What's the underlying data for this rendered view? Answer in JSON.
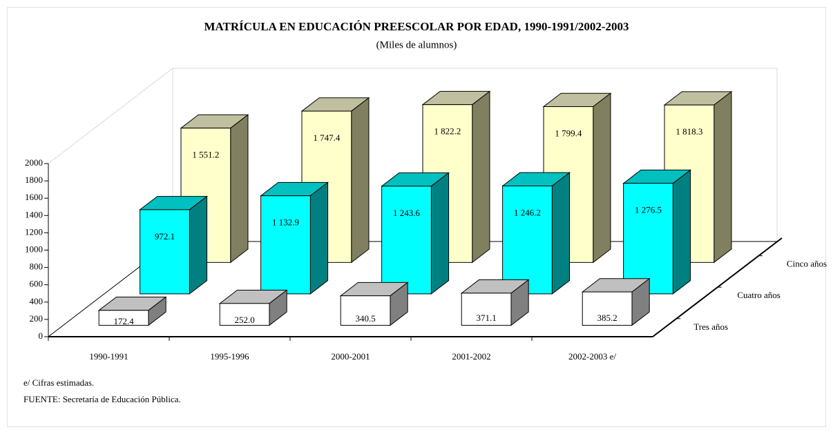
{
  "chart_data": {
    "type": "bar3d",
    "title": "MATRÍCULA EN EDUCACIÓN PREESCOLAR POR EDAD, 1990-1991/2002-2003",
    "subtitle": "(Miles de alumnos)",
    "categories": [
      "1990-1991",
      "1995-1996",
      "2000-2001",
      "2001-2002",
      "2002-2003 e/"
    ],
    "series": [
      {
        "name": "Tres años",
        "color": "#ffffff",
        "top_color": "#c0c0c0",
        "side_color": "#808080",
        "values": [
          172.4,
          252.0,
          340.5,
          371.1,
          385.2
        ],
        "value_labels": [
          "172.4",
          "252.0",
          "340.5",
          "371.1",
          "385.2"
        ]
      },
      {
        "name": "Cuatro años",
        "color": "#00ffff",
        "top_color": "#00c0c0",
        "side_color": "#008080",
        "values": [
          972.1,
          1132.9,
          1243.6,
          1246.2,
          1276.5
        ],
        "value_labels": [
          "972.1",
          "1 132.9",
          "1 243.6",
          "1 246.2",
          "1 276.5"
        ]
      },
      {
        "name": "Cinco años",
        "color": "#ffffcc",
        "top_color": "#c0c0a0",
        "side_color": "#808060",
        "values": [
          1551.2,
          1747.4,
          1822.2,
          1799.4,
          1818.3
        ],
        "value_labels": [
          "1 551.2",
          "1 747.4",
          "1 822.2",
          "1 799.4",
          "1 818.3"
        ]
      }
    ],
    "ylim": [
      0,
      2000
    ],
    "yticks": [
      0,
      200,
      400,
      600,
      800,
      1000,
      1200,
      1400,
      1600,
      1800,
      2000
    ],
    "notes": [
      "e/ Cifras estimadas.",
      "FUENTE: Secretaría de Educación Pública."
    ]
  }
}
